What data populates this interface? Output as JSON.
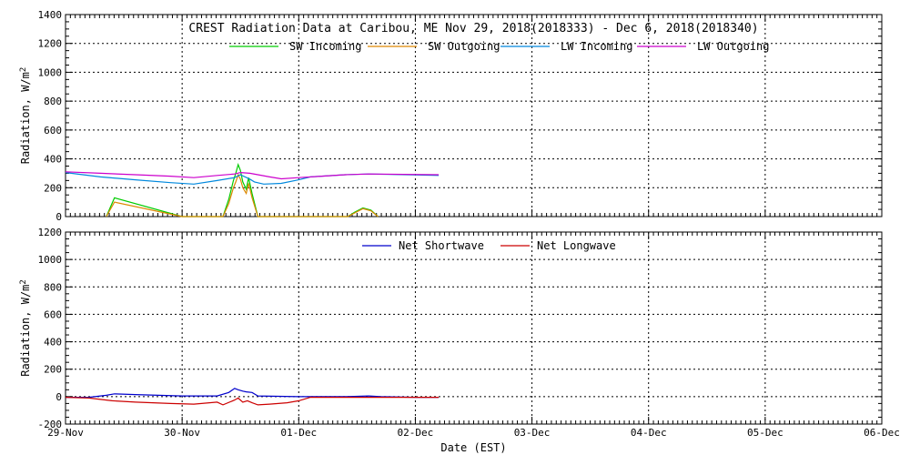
{
  "chart_data": [
    {
      "type": "line",
      "title": "CREST Radiation Data at Caribou, ME   Nov 29, 2018(2018333) - Dec  6, 2018(2018340)",
      "xlabel": "",
      "ylabel": "Radiation, W/m^2",
      "xlim": [
        0,
        7
      ],
      "ylim": [
        0,
        1400
      ],
      "y_ticks": [
        0,
        200,
        400,
        600,
        800,
        1000,
        1200,
        1400
      ],
      "x_ticks": [
        0,
        1,
        2,
        3,
        4,
        5,
        6,
        7
      ],
      "grid": true,
      "legend_placement": "top",
      "series": [
        {
          "name": "SW Incoming",
          "color": "#00cc00",
          "x": [
            0.35,
            0.42,
            1.0,
            1.35,
            1.4,
            1.44,
            1.46,
            1.48,
            1.5,
            1.52,
            1.55,
            1.57,
            1.6,
            1.65,
            2.42,
            2.48,
            2.55,
            2.62,
            2.68
          ],
          "y": [
            0,
            130,
            0,
            0,
            120,
            250,
            300,
            360,
            320,
            240,
            190,
            270,
            160,
            0,
            0,
            30,
            60,
            45,
            0
          ]
        },
        {
          "name": "SW Outgoing",
          "color": "#dd8800",
          "x": [
            0.35,
            0.42,
            1.0,
            1.35,
            1.4,
            1.44,
            1.46,
            1.48,
            1.5,
            1.52,
            1.55,
            1.57,
            1.6,
            1.65,
            2.42,
            2.48,
            2.55,
            2.62,
            2.68
          ],
          "y": [
            0,
            100,
            0,
            0,
            90,
            200,
            240,
            290,
            260,
            200,
            160,
            230,
            130,
            0,
            0,
            25,
            55,
            40,
            0
          ]
        },
        {
          "name": "LW Incoming",
          "color": "#0088dd",
          "x": [
            0.0,
            0.3,
            0.6,
            0.9,
            1.1,
            1.3,
            1.45,
            1.5,
            1.58,
            1.62,
            1.7,
            1.85,
            2.0,
            2.1,
            2.4,
            2.6,
            3.2
          ],
          "y": [
            305,
            275,
            255,
            235,
            225,
            250,
            270,
            290,
            260,
            240,
            225,
            230,
            255,
            275,
            290,
            295,
            285
          ]
        },
        {
          "name": "LW Outgoing",
          "color": "#cc00cc",
          "x": [
            0.0,
            0.3,
            0.6,
            0.9,
            1.1,
            1.3,
            1.45,
            1.5,
            1.58,
            1.65,
            1.75,
            1.85,
            2.0,
            2.2,
            2.4,
            2.6,
            3.2
          ],
          "y": [
            310,
            300,
            290,
            280,
            270,
            285,
            295,
            305,
            300,
            290,
            275,
            262,
            270,
            280,
            290,
            295,
            290
          ]
        }
      ]
    },
    {
      "type": "line",
      "title": "",
      "xlabel": "Date (EST)",
      "ylabel": "Radiation, W/m^2",
      "xlim": [
        0,
        7
      ],
      "ylim": [
        -200,
        1200
      ],
      "y_ticks": [
        -200,
        0,
        200,
        400,
        600,
        800,
        1000,
        1200
      ],
      "x_ticks": [
        0,
        1,
        2,
        3,
        4,
        5,
        6,
        7
      ],
      "x_tick_labels": [
        "29-Nov",
        "30-Nov",
        "01-Dec",
        "02-Dec",
        "03-Dec",
        "04-Dec",
        "05-Dec",
        "06-Dec"
      ],
      "grid": true,
      "legend_placement": "top",
      "series": [
        {
          "name": "Net Shortwave",
          "color": "#0000cc",
          "x": [
            0.0,
            0.2,
            0.35,
            0.42,
            0.6,
            1.0,
            1.3,
            1.4,
            1.45,
            1.48,
            1.52,
            1.55,
            1.6,
            1.65,
            2.0,
            2.4,
            2.6,
            2.7,
            3.0,
            3.2
          ],
          "y": [
            -5,
            -5,
            10,
            20,
            15,
            5,
            5,
            30,
            60,
            50,
            40,
            35,
            30,
            5,
            0,
            0,
            5,
            0,
            -5,
            -5
          ]
        },
        {
          "name": "Net Longwave",
          "color": "#cc0000",
          "x": [
            0.0,
            0.2,
            0.4,
            0.6,
            0.9,
            1.1,
            1.3,
            1.35,
            1.45,
            1.48,
            1.52,
            1.56,
            1.6,
            1.65,
            1.75,
            1.9,
            2.0,
            2.1,
            2.4,
            2.7,
            3.2
          ],
          "y": [
            -5,
            -10,
            -30,
            -40,
            -50,
            -55,
            -40,
            -60,
            -25,
            -10,
            -40,
            -30,
            -45,
            -60,
            -55,
            -45,
            -30,
            -5,
            -5,
            -5,
            -5
          ]
        }
      ]
    }
  ]
}
